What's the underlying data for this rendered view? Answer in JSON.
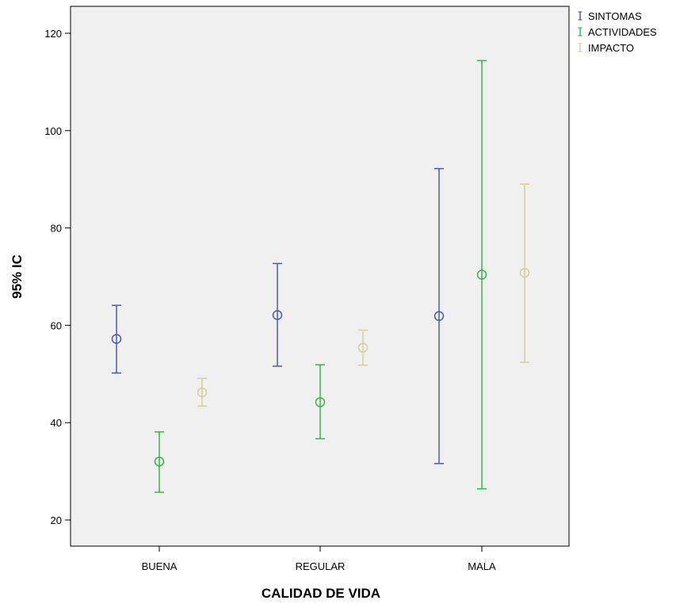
{
  "chart_data": {
    "type": "errorbar",
    "xlabel": "CALIDAD DE VIDA",
    "ylabel": "95% IC",
    "categories": [
      "BUENA",
      "REGULAR",
      "MALA"
    ],
    "ylim": [
      15,
      125
    ],
    "yticks": [
      20,
      40,
      60,
      80,
      100,
      120
    ],
    "ytick_labels": [
      "20",
      "40",
      "60",
      "80",
      "100",
      "120"
    ],
    "legend_position": "top-right outside",
    "plot_background": "#f0f0f0",
    "series": [
      {
        "name": "SINTOMAS",
        "color": "#4a5ab3",
        "mean": [
          57.2,
          62.1,
          61.9
        ],
        "lower": [
          50.2,
          51.6,
          31.6
        ],
        "upper": [
          64.1,
          72.7,
          92.2
        ]
      },
      {
        "name": "ACTIVIDADES",
        "color": "#3cb44a",
        "mean": [
          32.0,
          44.2,
          70.4
        ],
        "lower": [
          25.7,
          36.7,
          26.4
        ],
        "upper": [
          38.1,
          51.9,
          114.4
        ]
      },
      {
        "name": "IMPACTO",
        "color": "#d6d09a",
        "mean": [
          46.2,
          55.4,
          70.8
        ],
        "lower": [
          43.4,
          51.8,
          52.4
        ],
        "upper": [
          49.1,
          59.0,
          89.0
        ]
      }
    ]
  }
}
